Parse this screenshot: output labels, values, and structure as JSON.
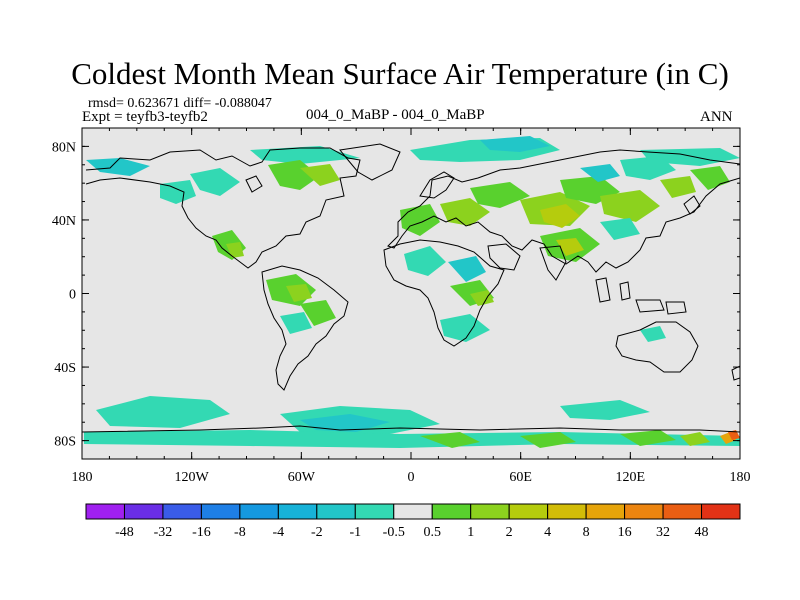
{
  "header": {
    "title": "Coldest Month Mean Surface Air Temperature (in C)",
    "stats": "rmsd= 0.623671 diff= -0.088047",
    "expt": "Expt = teyfb3-teyfb2",
    "center_label": "004_0_MaBP - 004_0_MaBP",
    "season": "ANN"
  },
  "chart_data": {
    "type": "heatmap",
    "title": "Coldest Month Mean Surface Air Temperature (in C)",
    "subtitle": "004_0_MaBP - 004_0_MaBP",
    "variable": "Coldest month mean surface air temperature difference",
    "units": "C",
    "rmsd": 0.623671,
    "diff": -0.088047,
    "expt": "teyfb3-teyfb2",
    "season": "ANN",
    "lon_range": [
      -180,
      180
    ],
    "lat_range": [
      -90,
      90
    ],
    "x_ticks": [
      "180",
      "120W",
      "60W",
      "0",
      "60E",
      "120E",
      "180"
    ],
    "y_ticks": [
      "80N",
      "40N",
      "0",
      "40S",
      "80S"
    ],
    "colorbar": {
      "labels": [
        "-48",
        "-32",
        "-16",
        "-8",
        "-4",
        "-2",
        "-1",
        "-0.5",
        "0.5",
        "1",
        "2",
        "4",
        "8",
        "16",
        "32",
        "48"
      ],
      "colors": [
        "#a020f0",
        "#6a2ee6",
        "#3a5ce8",
        "#1e7fe6",
        "#1599e0",
        "#17b2d8",
        "#22c6c8",
        "#33d9b3",
        "#e6e6e6",
        "#59d12e",
        "#8cd21e",
        "#b5cc0d",
        "#d2bc08",
        "#e6a40a",
        "#ec8510",
        "#ea5e13",
        "#e23216"
      ]
    },
    "legend_position": "bottom"
  }
}
